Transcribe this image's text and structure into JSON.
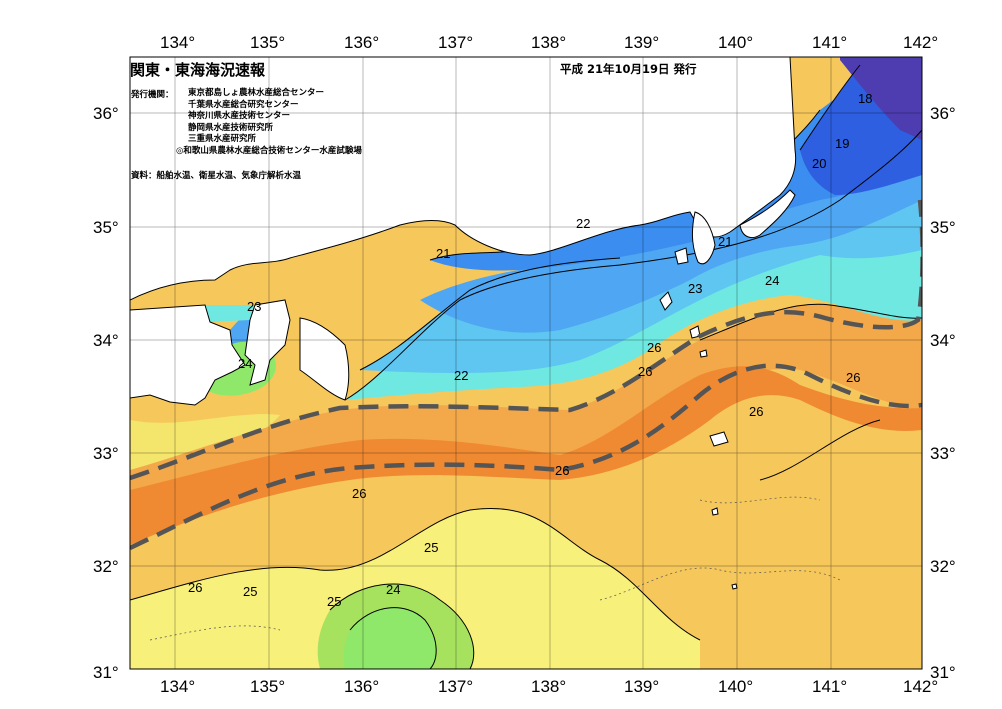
{
  "header": {
    "title": "関東・東海海況速報",
    "date": "平成 21年10月19日 発行"
  },
  "issuers": {
    "label": "発行機関：",
    "items": [
      "東京都島しょ農林水産総合センター",
      "千葉県水産総合研究センター",
      "神奈川県水産技術センター",
      "静岡県水産技術研究所",
      "三重県水産研究所",
      "◎和歌山県農林水産総合技術センター水産試験場"
    ]
  },
  "source": "資料：船舶水温、衛星水温、気象庁解析水温",
  "axes": {
    "lon_labels": [
      "134°",
      "135°",
      "136°",
      "137°",
      "138°",
      "139°",
      "140°",
      "141°",
      "142°"
    ],
    "lat_labels": [
      "36°",
      "35°",
      "34°",
      "33°",
      "32°",
      "31°"
    ]
  },
  "contour_labels": [
    "18",
    "19",
    "20",
    "21",
    "21",
    "22",
    "22",
    "23",
    "23",
    "24",
    "24",
    "24",
    "25",
    "25",
    "25",
    "26",
    "26",
    "26",
    "26",
    "26",
    "26"
  ],
  "colors": {
    "t18": "#4e3db0",
    "t19": "#2d5fe0",
    "t20": "#3b8ef0",
    "t21": "#4fa6f2",
    "t22": "#5ec6f0",
    "t23": "#6ee8e0",
    "t24": "#8fe86a",
    "t25": "#f7f07a",
    "t26": "#f6c85c",
    "t27": "#f3a94a",
    "t28": "#f08a32",
    "kuroshio_axis": "#555555",
    "land": "#ffffff"
  }
}
